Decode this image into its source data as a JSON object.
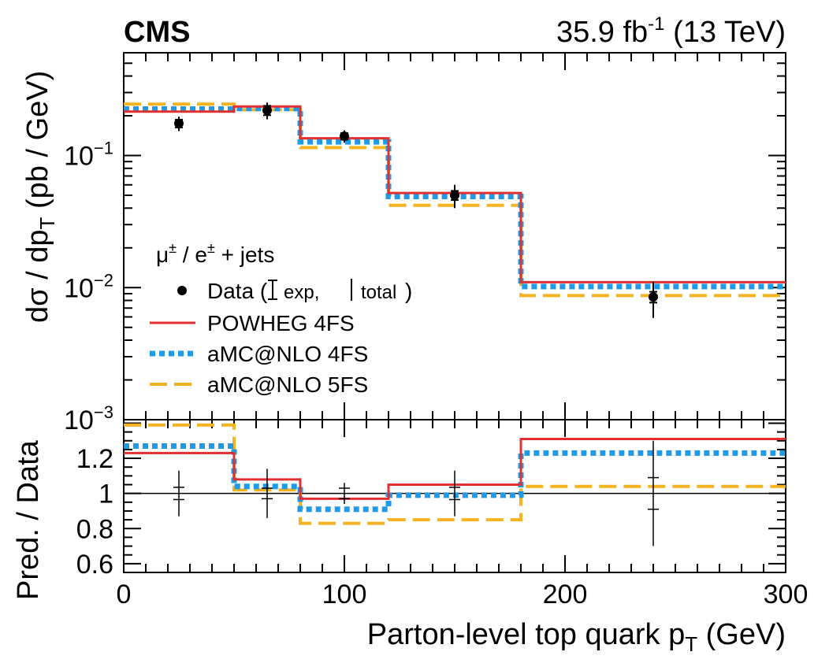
{
  "header": {
    "experiment": "CMS",
    "lumi_value": "35.9 fb",
    "lumi_exp": "-1",
    "energy": " (13 TeV)"
  },
  "colors": {
    "data": "#000000",
    "powheg": "#e03030",
    "amc4": "#1f9ae8",
    "amc5": "#f5b221"
  },
  "chart_data": {
    "type": "line",
    "title": "",
    "xlabel_main": "Parton-level top quark p",
    "xlabel_sub": "T",
    "xlabel_unit": " (GeV)",
    "xlim": [
      0,
      300
    ],
    "x_ticks": [
      0,
      100,
      200,
      300
    ],
    "x_tick_labels": [
      "0",
      "100",
      "200",
      "300"
    ],
    "bin_edges": [
      0,
      50,
      80,
      120,
      180,
      300
    ],
    "bin_centers": [
      25,
      65,
      100,
      150,
      240
    ],
    "top_panel": {
      "scale": "log",
      "ylim": [
        0.001,
        0.6
      ],
      "ylabel": "dσ / dp_T (pb / GeV)",
      "ytick_base": "10",
      "ytick_exps": [
        "−3",
        "−2",
        "−1"
      ],
      "series": [
        {
          "name": "Data",
          "values": [
            0.175,
            0.22,
            0.14,
            0.05,
            0.0085
          ],
          "err_exp_low": [
            0.012,
            0.018,
            0.008,
            0.004,
            0.0008
          ],
          "err_exp_high": [
            0.012,
            0.018,
            0.008,
            0.004,
            0.0008
          ],
          "err_tot_low": [
            0.022,
            0.032,
            0.015,
            0.01,
            0.0026
          ],
          "err_tot_high": [
            0.022,
            0.032,
            0.015,
            0.01,
            0.0026
          ]
        },
        {
          "name": "POWHEG 4FS",
          "values": [
            0.215,
            0.235,
            0.135,
            0.052,
            0.011
          ]
        },
        {
          "name": "aMC@NLO 4FS",
          "values": [
            0.225,
            0.227,
            0.127,
            0.049,
            0.0102
          ]
        },
        {
          "name": "aMC@NLO 5FS",
          "values": [
            0.245,
            0.222,
            0.115,
            0.042,
            0.0087
          ]
        }
      ]
    },
    "ratio_panel": {
      "ylim": [
        0.55,
        1.42
      ],
      "ylabel": "Pred. / Data",
      "y_ticks": [
        0.6,
        0.8,
        1.0,
        1.2
      ],
      "y_tick_labels": [
        "0.6",
        "0.8",
        "1",
        "1.2"
      ],
      "series": [
        {
          "name": "Data",
          "values": [
            1,
            1,
            1,
            1,
            1
          ],
          "err_exp": [
            0.035,
            0.03,
            0.03,
            0.035,
            0.09
          ],
          "err_tot": [
            0.13,
            0.14,
            0.06,
            0.13,
            0.3
          ]
        },
        {
          "name": "POWHEG 4FS",
          "values": [
            1.23,
            1.08,
            0.97,
            1.05,
            1.31
          ]
        },
        {
          "name": "aMC@NLO 4FS",
          "values": [
            1.27,
            1.04,
            0.91,
            0.99,
            1.23
          ]
        },
        {
          "name": "aMC@NLO 5FS",
          "values": [
            1.39,
            1.02,
            0.83,
            0.85,
            1.04
          ]
        }
      ]
    },
    "legend": {
      "placement": "lower-left of top panel",
      "channel": "μ",
      "channel_sup1": "±",
      "channel_mid": " / e",
      "channel_sup2": "±",
      "channel_end": " + jets",
      "data_label": "Data (",
      "data_exp": "exp,",
      "data_total": "total",
      "data_close": ")",
      "entries": [
        "POWHEG 4FS",
        "aMC@NLO 4FS",
        "aMC@NLO 5FS"
      ]
    }
  }
}
